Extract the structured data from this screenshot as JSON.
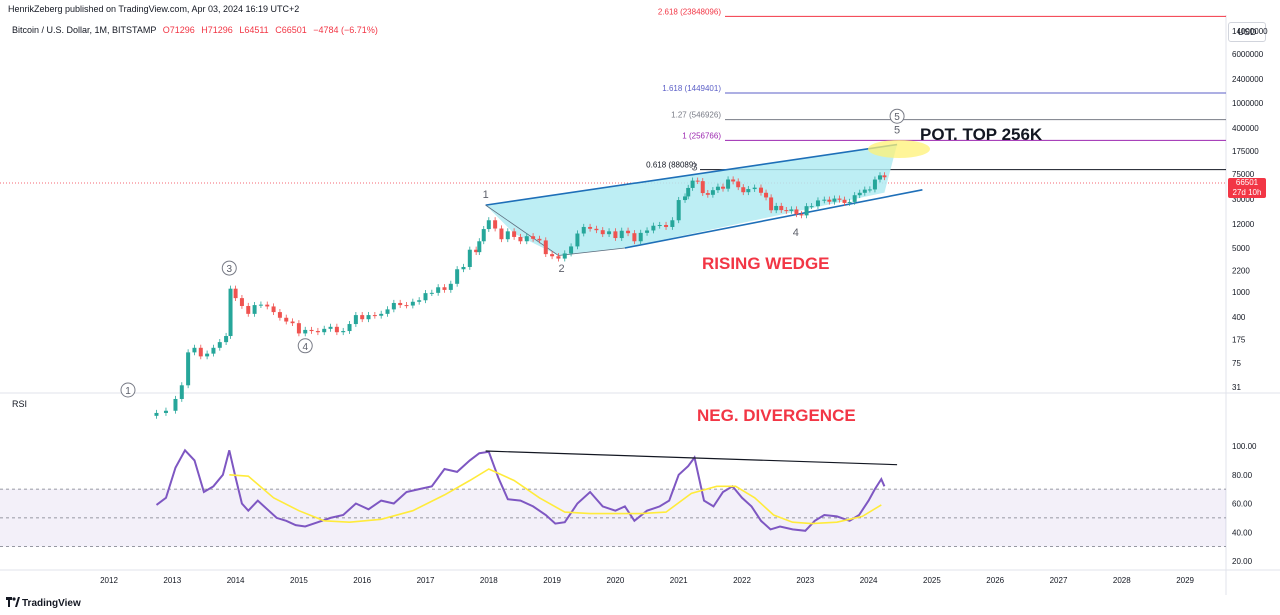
{
  "header": {
    "publisher": "HenrikZeberg published on TradingView.com, Apr 03, 2024 16:19 UTC+2",
    "symbol": "Bitcoin / U.S. Dollar, 1M, BITSTAMP",
    "open": "O71296",
    "high": "H71296",
    "low": "L64511",
    "close": "C66501",
    "change": "−4784 (−6.71%)"
  },
  "currency": "USD",
  "price_badge": {
    "price": "66501",
    "countdown": "27d 10h",
    "color": "#f23645"
  },
  "rsi_label": "RSI",
  "footer": {
    "logo_text": "TradingView"
  },
  "annotations": {
    "rising_wedge": "RISING WEDGE",
    "neg_divergence": "NEG. DIVERGENCE",
    "pot_top": "POT. TOP 256K"
  },
  "colors": {
    "wedge_fill": "#b2ebf2",
    "wedge_line": "#1e6fb8",
    "rsi_line": "#7e57c2",
    "rsi_ma": "#ffeb3b",
    "up_candle": "#26a69a",
    "down_candle": "#ef5350",
    "annotation_red": "#f23645",
    "highlight": "#fff176"
  },
  "chart_data": [
    {
      "type": "candlestick",
      "title": "Bitcoin / U.S. Dollar, 1M, BITSTAMP",
      "y_scale": "log",
      "y_ticks": [
        "14000000",
        "6000000",
        "2400000",
        "1000000",
        "400000",
        "175000",
        "75000",
        "30000",
        "12000",
        "5000",
        "2200",
        "1000",
        "400",
        "175",
        "75",
        "31"
      ],
      "x_ticks": [
        "2012",
        "2013",
        "2014",
        "2015",
        "2016",
        "2017",
        "2018",
        "2019",
        "2020",
        "2021",
        "2022",
        "2023",
        "2024",
        "2025",
        "2026",
        "2027",
        "2028",
        "2029"
      ],
      "fib_levels": [
        {
          "label": "2.618 (23848096)",
          "value": 23848096,
          "color": "#f23645"
        },
        {
          "label": "1.618 (1449401)",
          "value": 1449401,
          "color": "#5b5fc7"
        },
        {
          "label": "1.27 (546926)",
          "value": 546926,
          "color": "#787b86"
        },
        {
          "label": "1 (256766)",
          "value": 256766,
          "color": "#9c27b0"
        },
        {
          "label": "0.618 (88089)",
          "value": 88089,
          "color": "#131722"
        }
      ],
      "wave_labels": [
        {
          "label": "1",
          "date": 2012.3,
          "price": 16,
          "circled": true
        },
        {
          "label": "3",
          "date": 2013.9,
          "price": 2400,
          "circled": true
        },
        {
          "label": "4",
          "date": 2015.1,
          "price": 140,
          "circled": true
        },
        {
          "label": "1",
          "date": 2017.95,
          "price": 36000,
          "circled": false
        },
        {
          "label": "2",
          "date": 2019.15,
          "price": 2400,
          "circled": false
        },
        {
          "label": "3",
          "date": 2021.25,
          "price": 99000,
          "circled": false
        },
        {
          "label": "4",
          "date": 2022.85,
          "price": 9000,
          "circled": false
        },
        {
          "label": "5",
          "date": 2024.45,
          "price": 380000,
          "circled": false
        },
        {
          "label": "5",
          "date": 2024.45,
          "price": 620000,
          "circled": true
        }
      ],
      "candles": [
        {
          "date": 2012.75,
          "close": 12
        },
        {
          "date": 2012.9,
          "close": 13
        },
        {
          "date": 2013.05,
          "close": 20
        },
        {
          "date": 2013.15,
          "close": 33
        },
        {
          "date": 2013.25,
          "close": 110
        },
        {
          "date": 2013.35,
          "close": 130
        },
        {
          "date": 2013.45,
          "close": 95
        },
        {
          "date": 2013.55,
          "close": 105
        },
        {
          "date": 2013.65,
          "close": 130
        },
        {
          "date": 2013.75,
          "close": 160
        },
        {
          "date": 2013.85,
          "close": 200
        },
        {
          "date": 2013.92,
          "close": 1130
        },
        {
          "date": 2014.0,
          "close": 800
        },
        {
          "date": 2014.1,
          "close": 600
        },
        {
          "date": 2014.2,
          "close": 450
        },
        {
          "date": 2014.3,
          "close": 620
        },
        {
          "date": 2014.4,
          "close": 630
        },
        {
          "date": 2014.5,
          "close": 590
        },
        {
          "date": 2014.6,
          "close": 480
        },
        {
          "date": 2014.7,
          "close": 390
        },
        {
          "date": 2014.8,
          "close": 340
        },
        {
          "date": 2014.9,
          "close": 320
        },
        {
          "date": 2015.0,
          "close": 220
        },
        {
          "date": 2015.1,
          "close": 250
        },
        {
          "date": 2015.2,
          "close": 240
        },
        {
          "date": 2015.3,
          "close": 230
        },
        {
          "date": 2015.4,
          "close": 260
        },
        {
          "date": 2015.5,
          "close": 280
        },
        {
          "date": 2015.6,
          "close": 230
        },
        {
          "date": 2015.7,
          "close": 240
        },
        {
          "date": 2015.8,
          "close": 310
        },
        {
          "date": 2015.9,
          "close": 430
        },
        {
          "date": 2016.0,
          "close": 370
        },
        {
          "date": 2016.1,
          "close": 430
        },
        {
          "date": 2016.2,
          "close": 420
        },
        {
          "date": 2016.3,
          "close": 450
        },
        {
          "date": 2016.4,
          "close": 530
        },
        {
          "date": 2016.5,
          "close": 670
        },
        {
          "date": 2016.6,
          "close": 620
        },
        {
          "date": 2016.7,
          "close": 610
        },
        {
          "date": 2016.8,
          "close": 700
        },
        {
          "date": 2016.9,
          "close": 740
        },
        {
          "date": 2017.0,
          "close": 960
        },
        {
          "date": 2017.1,
          "close": 970
        },
        {
          "date": 2017.2,
          "close": 1190
        },
        {
          "date": 2017.3,
          "close": 1080
        },
        {
          "date": 2017.4,
          "close": 1350
        },
        {
          "date": 2017.5,
          "close": 2300
        },
        {
          "date": 2017.6,
          "close": 2500
        },
        {
          "date": 2017.7,
          "close": 4700
        },
        {
          "date": 2017.8,
          "close": 4300
        },
        {
          "date": 2017.85,
          "close": 6400
        },
        {
          "date": 2017.92,
          "close": 10000
        },
        {
          "date": 2018.0,
          "close": 13800
        },
        {
          "date": 2018.1,
          "close": 10200
        },
        {
          "date": 2018.2,
          "close": 6900
        },
        {
          "date": 2018.3,
          "close": 9200
        },
        {
          "date": 2018.4,
          "close": 7500
        },
        {
          "date": 2018.5,
          "close": 6400
        },
        {
          "date": 2018.6,
          "close": 7700
        },
        {
          "date": 2018.7,
          "close": 7000
        },
        {
          "date": 2018.8,
          "close": 6600
        },
        {
          "date": 2018.9,
          "close": 4000
        },
        {
          "date": 2019.0,
          "close": 3700
        },
        {
          "date": 2019.1,
          "close": 3400
        },
        {
          "date": 2019.2,
          "close": 4100
        },
        {
          "date": 2019.3,
          "close": 5300
        },
        {
          "date": 2019.4,
          "close": 8500
        },
        {
          "date": 2019.5,
          "close": 10800
        },
        {
          "date": 2019.6,
          "close": 10100
        },
        {
          "date": 2019.7,
          "close": 9600
        },
        {
          "date": 2019.8,
          "close": 8300
        },
        {
          "date": 2019.9,
          "close": 9200
        },
        {
          "date": 2020.0,
          "close": 7200
        },
        {
          "date": 2020.1,
          "close": 9400
        },
        {
          "date": 2020.2,
          "close": 8600
        },
        {
          "date": 2020.3,
          "close": 6400
        },
        {
          "date": 2020.4,
          "close": 8700
        },
        {
          "date": 2020.5,
          "close": 9500
        },
        {
          "date": 2020.6,
          "close": 11300
        },
        {
          "date": 2020.7,
          "close": 11600
        },
        {
          "date": 2020.8,
          "close": 10800
        },
        {
          "date": 2020.9,
          "close": 13800
        },
        {
          "date": 2021.0,
          "close": 28900
        },
        {
          "date": 2021.1,
          "close": 33000
        },
        {
          "date": 2021.15,
          "close": 45000
        },
        {
          "date": 2021.22,
          "close": 58800
        },
        {
          "date": 2021.3,
          "close": 57700
        },
        {
          "date": 2021.38,
          "close": 37300
        },
        {
          "date": 2021.46,
          "close": 35000
        },
        {
          "date": 2021.54,
          "close": 41500
        },
        {
          "date": 2021.62,
          "close": 47100
        },
        {
          "date": 2021.7,
          "close": 43800
        },
        {
          "date": 2021.78,
          "close": 61300
        },
        {
          "date": 2021.86,
          "close": 57000
        },
        {
          "date": 2021.94,
          "close": 46200
        },
        {
          "date": 2022.02,
          "close": 38500
        },
        {
          "date": 2022.1,
          "close": 43200
        },
        {
          "date": 2022.2,
          "close": 45500
        },
        {
          "date": 2022.3,
          "close": 37700
        },
        {
          "date": 2022.38,
          "close": 31800
        },
        {
          "date": 2022.46,
          "close": 19900
        },
        {
          "date": 2022.54,
          "close": 23300
        },
        {
          "date": 2022.62,
          "close": 20000
        },
        {
          "date": 2022.7,
          "close": 19400
        },
        {
          "date": 2022.78,
          "close": 20500
        },
        {
          "date": 2022.86,
          "close": 17200
        },
        {
          "date": 2022.94,
          "close": 16500
        },
        {
          "date": 2023.02,
          "close": 23100
        },
        {
          "date": 2023.1,
          "close": 23100
        },
        {
          "date": 2023.2,
          "close": 28500
        },
        {
          "date": 2023.3,
          "close": 29300
        },
        {
          "date": 2023.38,
          "close": 27200
        },
        {
          "date": 2023.46,
          "close": 30500
        },
        {
          "date": 2023.54,
          "close": 29200
        },
        {
          "date": 2023.62,
          "close": 26000
        },
        {
          "date": 2023.7,
          "close": 27000
        },
        {
          "date": 2023.78,
          "close": 34500
        },
        {
          "date": 2023.86,
          "close": 37700
        },
        {
          "date": 2023.94,
          "close": 42300
        },
        {
          "date": 2024.02,
          "close": 42600
        },
        {
          "date": 2024.1,
          "close": 61200
        },
        {
          "date": 2024.18,
          "close": 71300
        },
        {
          "date": 2024.25,
          "close": 66501
        }
      ]
    },
    {
      "type": "line",
      "title": "RSI",
      "y_ticks": [
        "100.00",
        "80.00",
        "60.00",
        "40.00",
        "20.00"
      ],
      "ylim": [
        20,
        100
      ],
      "bands": [
        30,
        50,
        70
      ],
      "series": [
        {
          "name": "",
          "x": [
            2012.75,
            2012.9,
            2013.05,
            2013.2,
            2013.35,
            2013.5,
            2013.65,
            2013.8,
            2013.9,
            2014.0,
            2014.1,
            2014.2,
            2014.35,
            2014.5,
            2014.65,
            2014.8,
            2014.95,
            2015.1,
            2015.3,
            2015.5,
            2015.7,
            2015.9,
            2016.1,
            2016.3,
            2016.5,
            2016.7,
            2016.9,
            2017.1,
            2017.3,
            2017.5,
            2017.7,
            2017.85,
            2018.0,
            2018.15,
            2018.3,
            2018.5,
            2018.7,
            2018.9,
            2019.05,
            2019.2,
            2019.4,
            2019.6,
            2019.8,
            2020.0,
            2020.15,
            2020.3,
            2020.5,
            2020.7,
            2020.85,
            2021.0,
            2021.15,
            2021.25,
            2021.4,
            2021.55,
            2021.7,
            2021.85,
            2022.0,
            2022.15,
            2022.3,
            2022.45,
            2022.6,
            2022.8,
            2023.0,
            2023.15,
            2023.3,
            2023.5,
            2023.7,
            2023.85,
            2024.0,
            2024.1,
            2024.2,
            2024.25
          ],
          "y": [
            59,
            64,
            85,
            97,
            90,
            68,
            72,
            80,
            97,
            78,
            60,
            55,
            62,
            56,
            50,
            48,
            45,
            44,
            47,
            50,
            52,
            60,
            56,
            62,
            60,
            68,
            70,
            72,
            84,
            82,
            90,
            95,
            96,
            78,
            63,
            62,
            58,
            52,
            46,
            47,
            60,
            68,
            58,
            55,
            58,
            48,
            55,
            58,
            62,
            80,
            86,
            92,
            62,
            58,
            68,
            72,
            64,
            58,
            48,
            42,
            44,
            42,
            41,
            48,
            52,
            51,
            48,
            52,
            62,
            70,
            77,
            72
          ]
        },
        {
          "name": "",
          "x": [
            2013.9,
            2014.2,
            2014.6,
            2015.0,
            2015.4,
            2015.8,
            2016.3,
            2016.8,
            2017.3,
            2017.7,
            2018.0,
            2018.4,
            2018.8,
            2019.2,
            2019.6,
            2020.0,
            2020.4,
            2020.8,
            2021.2,
            2021.6,
            2021.9,
            2022.2,
            2022.5,
            2022.8,
            2023.1,
            2023.5,
            2023.9,
            2024.2
          ],
          "y": [
            80,
            79,
            64,
            55,
            48,
            47,
            49,
            55,
            66,
            76,
            84,
            76,
            64,
            54,
            53,
            53,
            53,
            54,
            67,
            72,
            72,
            64,
            52,
            47,
            46,
            47,
            51,
            59
          ]
        }
      ],
      "lines": [
        {
          "x1": 2017.95,
          "y1": 96.5,
          "x2": 2024.45,
          "y2": 87
        }
      ]
    }
  ]
}
